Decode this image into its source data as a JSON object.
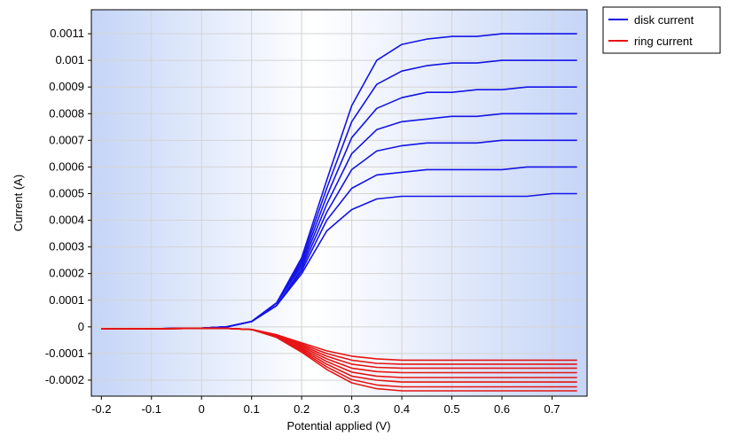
{
  "chart_data": {
    "type": "line",
    "title": "",
    "xlabel": "Potential applied (V)",
    "ylabel": "Current (A)",
    "xlim": [
      -0.22,
      0.77
    ],
    "ylim": [
      -0.00026,
      0.00119
    ],
    "x_ticks": [
      -0.2,
      -0.1,
      0,
      0.1,
      0.2,
      0.3,
      0.4,
      0.5,
      0.6,
      0.7
    ],
    "x_tick_labels": [
      "-0.2",
      "-0.1",
      "0",
      "0.1",
      "0.2",
      "0.3",
      "0.4",
      "0.5",
      "0.6",
      "0.7"
    ],
    "y_ticks": [
      -0.0002,
      -0.0001,
      0,
      0.0001,
      0.0002,
      0.0003,
      0.0004,
      0.0005,
      0.0006,
      0.0007,
      0.0008,
      0.0009,
      0.001,
      0.0011
    ],
    "y_tick_labels": [
      "-0.0002",
      "-0.0001",
      "0",
      "0.0001",
      "0.0002",
      "0.0003",
      "0.0004",
      "0.0005",
      "0.0006",
      "0.0007",
      "0.0008",
      "0.0009",
      "0.001",
      "0.0011"
    ],
    "grid": true,
    "legend_position": "outside-top-right",
    "background": {
      "gradient_edge": "#c5d5f7",
      "gradient_center": "#ffffff"
    },
    "series": [
      {
        "name": "disk current",
        "color": "#1414e6",
        "x": [
          -0.2,
          -0.1,
          0,
          0.05,
          0.1,
          0.15,
          0.2,
          0.25,
          0.3,
          0.35,
          0.4,
          0.45,
          0.5,
          0.55,
          0.6,
          0.65,
          0.7,
          0.75
        ],
        "curves": [
          [
            -8e-06,
            -7e-06,
            -5e-06,
            0,
            2e-05,
            8e-05,
            0.0002,
            0.00036,
            0.00044,
            0.00048,
            0.00049,
            0.00049,
            0.00049,
            0.00049,
            0.00049,
            0.00049,
            0.0005,
            0.0005
          ],
          [
            -8e-06,
            -7e-06,
            -5e-06,
            0,
            2e-05,
            8e-05,
            0.00021,
            0.0004,
            0.00052,
            0.00057,
            0.00058,
            0.00059,
            0.00059,
            0.00059,
            0.00059,
            0.0006,
            0.0006,
            0.0006
          ],
          [
            -8e-06,
            -7e-06,
            -5e-06,
            0,
            2e-05,
            8e-05,
            0.00022,
            0.00043,
            0.00059,
            0.00066,
            0.00068,
            0.00069,
            0.00069,
            0.00069,
            0.0007,
            0.0007,
            0.0007,
            0.0007
          ],
          [
            -8e-06,
            -7e-06,
            -5e-06,
            0,
            2e-05,
            9e-05,
            0.00023,
            0.00046,
            0.00065,
            0.00074,
            0.00077,
            0.00078,
            0.00079,
            0.00079,
            0.0008,
            0.0008,
            0.0008,
            0.0008
          ],
          [
            -8e-06,
            -7e-06,
            -5e-06,
            0,
            2e-05,
            9e-05,
            0.00024,
            0.00049,
            0.00071,
            0.00082,
            0.00086,
            0.00088,
            0.00088,
            0.00089,
            0.00089,
            0.0009,
            0.0009,
            0.0009
          ],
          [
            -8e-06,
            -7e-06,
            -5e-06,
            0,
            2e-05,
            9e-05,
            0.00025,
            0.00052,
            0.00077,
            0.00091,
            0.00096,
            0.00098,
            0.00099,
            0.00099,
            0.001,
            0.001,
            0.001,
            0.001
          ],
          [
            -8e-06,
            -7e-06,
            -5e-06,
            0,
            2e-05,
            9e-05,
            0.00026,
            0.00055,
            0.00083,
            0.001,
            0.00106,
            0.00108,
            0.00109,
            0.00109,
            0.0011,
            0.0011,
            0.0011,
            0.0011
          ]
        ]
      },
      {
        "name": "ring current",
        "color": "#e61414",
        "x": [
          -0.2,
          -0.1,
          0,
          0.05,
          0.1,
          0.15,
          0.2,
          0.25,
          0.3,
          0.35,
          0.4,
          0.45,
          0.5,
          0.55,
          0.6,
          0.65,
          0.7,
          0.75
        ],
        "curves": [
          [
            -8e-06,
            -7e-06,
            -6e-06,
            -6e-06,
            -1e-05,
            -3e-05,
            -6e-05,
            -9e-05,
            -0.00011,
            -0.00012,
            -0.000125,
            -0.000125,
            -0.000125,
            -0.000125,
            -0.000125,
            -0.000125,
            -0.000125,
            -0.000125
          ],
          [
            -8e-06,
            -7e-06,
            -6e-06,
            -6e-06,
            -1e-05,
            -3e-05,
            -6.5e-05,
            -0.0001,
            -0.000125,
            -0.000137,
            -0.00014,
            -0.00014,
            -0.00014,
            -0.00014,
            -0.00014,
            -0.00014,
            -0.00014,
            -0.00014
          ],
          [
            -8e-06,
            -7e-06,
            -6e-06,
            -6e-06,
            -1e-05,
            -3e-05,
            -7e-05,
            -0.00011,
            -0.00014,
            -0.000152,
            -0.000155,
            -0.000155,
            -0.000155,
            -0.000155,
            -0.000155,
            -0.000155,
            -0.000155,
            -0.000155
          ],
          [
            -8e-06,
            -7e-06,
            -6e-06,
            -6e-06,
            -1e-05,
            -3.2e-05,
            -7.5e-05,
            -0.00012,
            -0.000155,
            -0.000168,
            -0.000172,
            -0.000172,
            -0.000172,
            -0.000172,
            -0.000172,
            -0.000172,
            -0.000172,
            -0.000172
          ],
          [
            -8e-06,
            -7e-06,
            -6e-06,
            -6e-06,
            -1e-05,
            -3.4e-05,
            -8e-05,
            -0.00013,
            -0.00017,
            -0.000185,
            -0.00019,
            -0.00019,
            -0.00019,
            -0.00019,
            -0.00019,
            -0.00019,
            -0.00019,
            -0.00019
          ],
          [
            -8e-06,
            -7e-06,
            -6e-06,
            -6e-06,
            -1e-05,
            -3.6e-05,
            -8.5e-05,
            -0.00014,
            -0.000185,
            -0.0002,
            -0.000207,
            -0.000207,
            -0.000207,
            -0.000207,
            -0.000207,
            -0.000207,
            -0.000207,
            -0.000207
          ],
          [
            -8e-06,
            -7e-06,
            -6e-06,
            -6e-06,
            -1e-05,
            -3.8e-05,
            -9e-05,
            -0.00015,
            -0.000198,
            -0.000218,
            -0.000225,
            -0.000225,
            -0.000225,
            -0.000225,
            -0.000225,
            -0.000225,
            -0.000225,
            -0.000225
          ],
          [
            -8e-06,
            -7e-06,
            -6e-06,
            -6e-06,
            -1e-05,
            -4e-05,
            -9.5e-05,
            -0.00016,
            -0.00021,
            -0.000232,
            -0.00024,
            -0.00024,
            -0.00024,
            -0.00024,
            -0.00024,
            -0.00024,
            -0.00024,
            -0.00024
          ]
        ]
      }
    ]
  }
}
